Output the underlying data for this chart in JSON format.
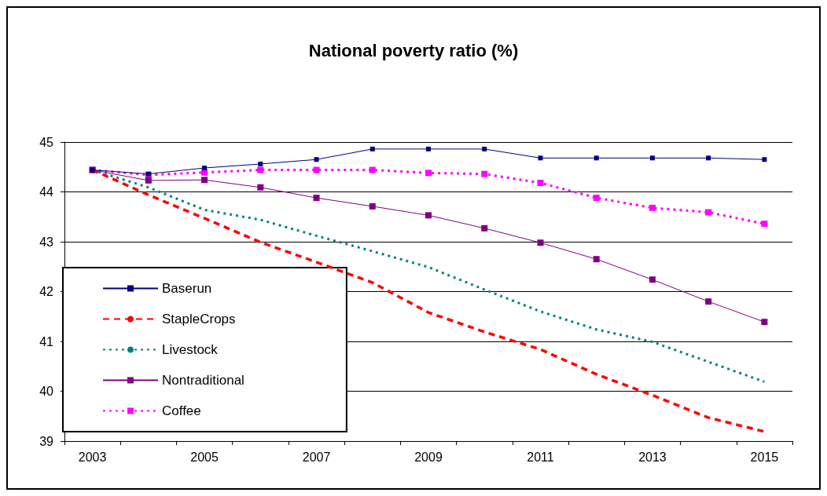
{
  "chart_data": {
    "type": "line",
    "title": "National poverty ratio (%)",
    "categories": [
      "2003",
      null,
      "2005",
      null,
      "2007",
      null,
      "2009",
      null,
      "2011",
      null,
      "2013",
      null,
      "2015"
    ],
    "series": [
      {
        "name": "Baserun",
        "color": "#000080",
        "marker": "square",
        "line_style": "solid",
        "values": [
          44.44,
          44.36,
          44.48,
          44.56,
          44.65,
          44.86,
          44.86,
          44.86,
          44.68,
          44.68,
          44.68,
          44.68,
          44.65
        ]
      },
      {
        "name": "StapleCrops",
        "color": "#ff0000",
        "marker": "none",
        "line_style": "dashed",
        "values": [
          44.44,
          43.94,
          43.47,
          42.99,
          42.59,
          42.18,
          41.58,
          41.19,
          40.84,
          40.34,
          39.92,
          39.47,
          39.19
        ]
      },
      {
        "name": "Livestock",
        "color": "#008080",
        "marker": "none",
        "line_style": "dotted",
        "values": [
          44.44,
          44.09,
          43.64,
          43.44,
          43.12,
          42.81,
          42.49,
          42.04,
          41.6,
          41.24,
          40.99,
          40.59,
          40.19
        ]
      },
      {
        "name": "Nontraditional",
        "color": "#800080",
        "marker": "square",
        "line_style": "solid",
        "values": [
          44.44,
          44.23,
          44.24,
          44.09,
          43.88,
          43.71,
          43.53,
          43.27,
          42.98,
          42.65,
          42.24,
          41.8,
          41.39
        ]
      },
      {
        "name": "Coffee",
        "color": "#ff00ff",
        "marker": "square",
        "line_style": "dotted",
        "values": [
          44.44,
          44.34,
          44.39,
          44.44,
          44.44,
          44.44,
          44.38,
          44.36,
          44.18,
          43.88,
          43.68,
          43.59,
          43.36
        ]
      }
    ],
    "ylim": [
      39,
      45
    ],
    "yticks": [
      39,
      40,
      41,
      42,
      43,
      44,
      45
    ],
    "grid": "y",
    "legend": "bottom left"
  }
}
